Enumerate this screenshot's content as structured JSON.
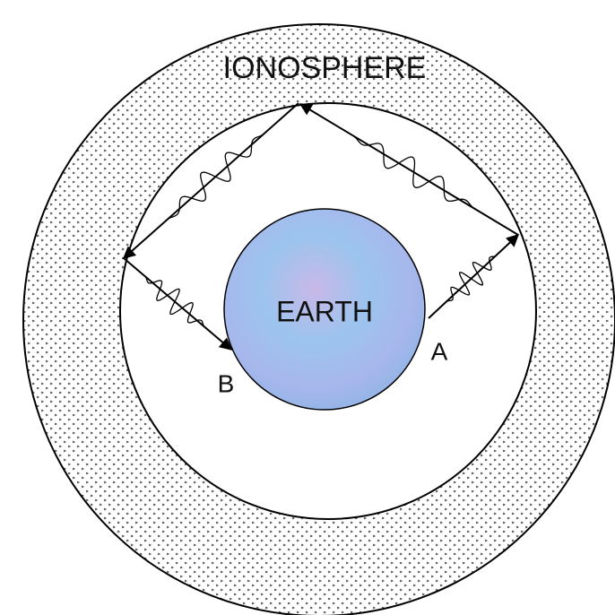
{
  "ionosphere": {
    "label": "IONOSPHERE"
  },
  "earth": {
    "label": "EARTH"
  },
  "points": [
    {
      "label": "A"
    },
    {
      "label": "B"
    }
  ]
}
